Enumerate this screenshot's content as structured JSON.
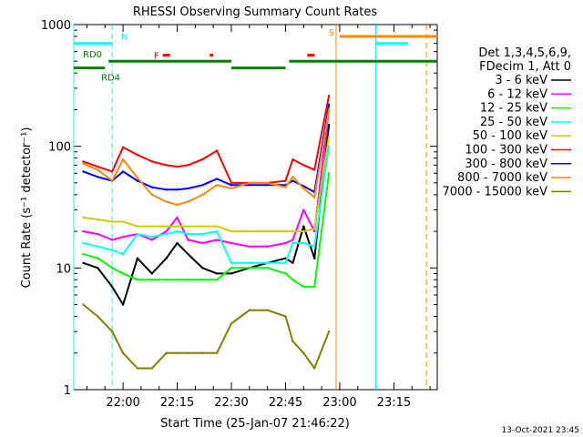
{
  "chart_data": {
    "type": "line",
    "title": "RHESSI Observing Summary Count Rates",
    "xlabel": "Start Time (25-Jan-07 21:46:22)",
    "ylabel": "Count Rate (s⁻¹ detector⁻¹)",
    "y_scale": "log",
    "ylim": [
      1,
      1000
    ],
    "xlim": [
      "21:46:22",
      "23:27:00"
    ],
    "x_ticks": [
      "22:00",
      "22:15",
      "22:30",
      "22:45",
      "23:00",
      "23:15"
    ],
    "y_ticks": [
      "1",
      "10",
      "100",
      "1000"
    ],
    "legend_header": [
      "Det 1,3,4,5,6,9,",
      "FDecim 1, Att 0"
    ],
    "legend_placement": "right",
    "timestamp": "13-Oct-2021 23:45",
    "series": [
      {
        "name": "3 - 6 keV",
        "color": "#000000",
        "x": [
          "21:49",
          "21:53",
          "21:57",
          "22:00",
          "22:04",
          "22:08",
          "22:12",
          "22:15",
          "22:18",
          "22:22",
          "22:26",
          "22:30",
          "22:35",
          "22:40",
          "22:45",
          "22:47",
          "22:50",
          "22:53",
          "22:57"
        ],
        "values": [
          11,
          10,
          7,
          5,
          12,
          9,
          12,
          16,
          13,
          10,
          9,
          9,
          10,
          11,
          12,
          11,
          22,
          12,
          150
        ]
      },
      {
        "name": "6 - 12 keV",
        "color": "#ff00ff",
        "x": [
          "21:49",
          "21:53",
          "21:57",
          "22:00",
          "22:04",
          "22:08",
          "22:12",
          "22:15",
          "22:18",
          "22:22",
          "22:26",
          "22:30",
          "22:35",
          "22:40",
          "22:45",
          "22:47",
          "22:50",
          "22:53",
          "22:57"
        ],
        "values": [
          20,
          19,
          17,
          18,
          19,
          17,
          20,
          26,
          17,
          16,
          17,
          16,
          15,
          15,
          16,
          17,
          30,
          20,
          200
        ]
      },
      {
        "name": "12 - 25 keV",
        "color": "#00ff00",
        "x": [
          "21:49",
          "21:53",
          "21:57",
          "22:00",
          "22:04",
          "22:08",
          "22:12",
          "22:15",
          "22:18",
          "22:22",
          "22:26",
          "22:30",
          "22:35",
          "22:40",
          "22:45",
          "22:47",
          "22:50",
          "22:53",
          "22:57"
        ],
        "values": [
          13,
          12,
          10,
          9,
          8,
          8,
          8,
          8,
          8,
          8,
          8,
          10,
          10,
          10,
          9,
          8,
          7,
          7,
          60
        ]
      },
      {
        "name": "25 - 50 keV",
        "color": "#00ffff",
        "x": [
          "21:49",
          "21:53",
          "21:57",
          "22:00",
          "22:04",
          "22:08",
          "22:12",
          "22:15",
          "22:18",
          "22:22",
          "22:26",
          "22:30",
          "22:35",
          "22:40",
          "22:45",
          "22:47",
          "22:50",
          "22:53",
          "22:57"
        ],
        "values": [
          16,
          15,
          14,
          13,
          19,
          18,
          19,
          20,
          19,
          19,
          20,
          11,
          11,
          11,
          11,
          16,
          16,
          15,
          100
        ]
      },
      {
        "name": "50 - 100 keV",
        "color": "#cccc00",
        "x": [
          "21:49",
          "21:53",
          "21:57",
          "22:00",
          "22:04",
          "22:08",
          "22:12",
          "22:15",
          "22:18",
          "22:22",
          "22:26",
          "22:30",
          "22:35",
          "22:40",
          "22:45",
          "22:47",
          "22:50",
          "22:53",
          "22:57"
        ],
        "values": [
          26,
          25,
          24,
          24,
          22,
          22,
          22,
          22,
          22,
          22,
          22,
          20,
          20,
          20,
          20,
          20,
          20,
          21,
          120
        ]
      },
      {
        "name": "100 - 300 keV",
        "color": "#ff0000",
        "x": [
          "21:49",
          "21:53",
          "21:57",
          "22:00",
          "22:04",
          "22:08",
          "22:12",
          "22:15",
          "22:18",
          "22:22",
          "22:26",
          "22:30",
          "22:35",
          "22:40",
          "22:45",
          "22:47",
          "22:50",
          "22:53",
          "22:57"
        ],
        "values": [
          75,
          68,
          62,
          98,
          85,
          75,
          70,
          68,
          70,
          78,
          92,
          50,
          50,
          50,
          52,
          78,
          70,
          64,
          260
        ]
      },
      {
        "name": "300 - 800 keV",
        "color": "#0000ff",
        "x": [
          "21:49",
          "21:53",
          "21:57",
          "22:00",
          "22:04",
          "22:08",
          "22:12",
          "22:15",
          "22:18",
          "22:22",
          "22:26",
          "22:30",
          "22:35",
          "22:40",
          "22:45",
          "22:47",
          "22:50",
          "22:53",
          "22:57"
        ],
        "values": [
          62,
          56,
          52,
          62,
          52,
          46,
          44,
          44,
          45,
          48,
          54,
          48,
          48,
          48,
          48,
          52,
          47,
          42,
          220
        ]
      },
      {
        "name": "800 - 7000 keV",
        "color": "#ff8800",
        "x": [
          "21:49",
          "21:53",
          "21:57",
          "22:00",
          "22:04",
          "22:08",
          "22:12",
          "22:15",
          "22:18",
          "22:22",
          "22:26",
          "22:30",
          "22:35",
          "22:40",
          "22:45",
          "22:47",
          "22:50",
          "22:53",
          "22:57"
        ],
        "values": [
          72,
          64,
          52,
          78,
          55,
          40,
          35,
          33,
          35,
          40,
          48,
          45,
          50,
          50,
          46,
          56,
          45,
          38,
          200
        ]
      },
      {
        "name": "7000 - 15000 keV",
        "color": "#808000",
        "x": [
          "21:49",
          "21:53",
          "21:57",
          "22:00",
          "22:04",
          "22:08",
          "22:12",
          "22:15",
          "22:18",
          "22:22",
          "22:26",
          "22:30",
          "22:35",
          "22:40",
          "22:45",
          "22:47",
          "22:50",
          "22:53",
          "22:57"
        ],
        "values": [
          5,
          4,
          3,
          2,
          1.5,
          1.5,
          2,
          2,
          2,
          2,
          2,
          3.5,
          4.5,
          4.5,
          4,
          2.5,
          2,
          1.5,
          3
        ]
      }
    ],
    "flag_bars": [
      {
        "label": "N",
        "color": "#00ffff",
        "level": 700,
        "segments": [
          [
            "21:46:22",
            "21:57"
          ],
          [
            "23:10",
            "23:19"
          ]
        ]
      },
      {
        "label": "F",
        "color": "#ff0000",
        "level": 560,
        "segments": [
          [
            "22:11",
            "22:13"
          ],
          [
            "22:24",
            "22:25"
          ],
          [
            "22:51",
            "22:53"
          ]
        ]
      },
      {
        "label": "S",
        "color": "#ff8800",
        "level": 800,
        "segments": [
          [
            "23:00",
            "23:27"
          ]
        ]
      },
      {
        "label": "RD0",
        "color": "#008000",
        "level": 500,
        "segments": [
          [
            "21:56",
            "22:30"
          ],
          [
            "22:46",
            "23:27"
          ]
        ]
      },
      {
        "label": "RD4",
        "color": "#008000",
        "level": 440,
        "segments": [
          [
            "21:46:22",
            "21:55"
          ],
          [
            "22:30",
            "22:45"
          ]
        ]
      }
    ],
    "vertical_markers": [
      {
        "time": "21:46:22",
        "color": "#00ffff",
        "style": "solid"
      },
      {
        "time": "21:57",
        "color": "#00ffff",
        "style": "dashed"
      },
      {
        "time": "23:10",
        "color": "#00ffff",
        "style": "solid"
      },
      {
        "time": "22:59",
        "color": "#ff8800",
        "style": "solid"
      },
      {
        "time": "23:24",
        "color": "#ff8800",
        "style": "dashed"
      }
    ]
  }
}
